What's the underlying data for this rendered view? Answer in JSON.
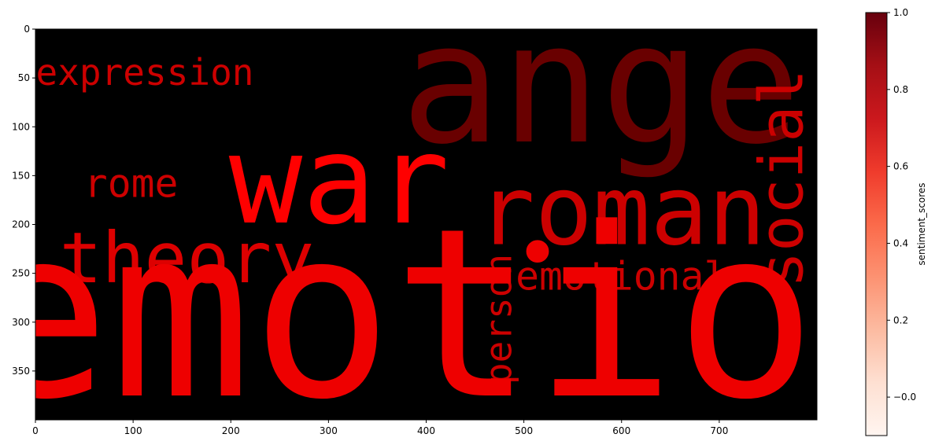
{
  "chart_data": {
    "type": "wordcloud",
    "image_shape": {
      "width": 800,
      "height": 400
    },
    "background": "#000000",
    "xlim": [
      0,
      800
    ],
    "ylim": [
      400,
      0
    ],
    "x_ticks": [
      0,
      100,
      200,
      300,
      400,
      500,
      600,
      700
    ],
    "y_ticks": [
      0,
      50,
      100,
      150,
      200,
      250,
      300,
      350
    ],
    "words": [
      {
        "text": "anger",
        "color": "#690000",
        "orientation": "horizontal",
        "x": 630,
        "y": 115,
        "font_size": 170
      },
      {
        "text": "war",
        "color": "#ff0000",
        "orientation": "horizontal",
        "x": 311,
        "y": 198,
        "font_size": 125
      },
      {
        "text": "roman",
        "color": "#cc0000",
        "orientation": "horizontal",
        "x": 600,
        "y": 220,
        "font_size": 98
      },
      {
        "text": "expression",
        "color": "#cc0000",
        "orientation": "horizontal",
        "x": 112,
        "y": 57,
        "font_size": 37
      },
      {
        "text": "rome",
        "color": "#cc0000",
        "orientation": "horizontal",
        "x": 98,
        "y": 172,
        "font_size": 40
      },
      {
        "text": "theory",
        "color": "#dd0000",
        "orientation": "horizontal",
        "x": 155,
        "y": 259,
        "font_size": 72
      },
      {
        "text": "social",
        "color": "#cc0000",
        "orientation": "vertical",
        "x": 785,
        "y": 153,
        "font_size": 62
      },
      {
        "text": "emotional",
        "color": "#cc0000",
        "orientation": "horizontal",
        "x": 600,
        "y": 267,
        "font_size": 40
      },
      {
        "text": "•",
        "color": "#ee0000",
        "orientation": "horizontal",
        "x": 514,
        "y": 257,
        "font_size": 80
      },
      {
        "text": "person",
        "color": "#cc0000",
        "orientation": "vertical",
        "x": 487,
        "y": 297,
        "font_size": 37
      },
      {
        "text": "emotion",
        "color": "#ee0000",
        "orientation": "horizontal",
        "x": 438,
        "y": 375,
        "font_size": 240
      }
    ],
    "colorbar": {
      "label": "sentiment_scores",
      "colormap": "Reds",
      "range": [
        -0.1,
        1.0
      ],
      "ticks": [
        -0.0,
        0.2,
        0.4,
        0.6,
        0.8,
        1.0
      ],
      "tick_labels": [
        "−0.0",
        "0.2",
        "0.4",
        "0.6",
        "0.8",
        "1.0"
      ]
    }
  }
}
